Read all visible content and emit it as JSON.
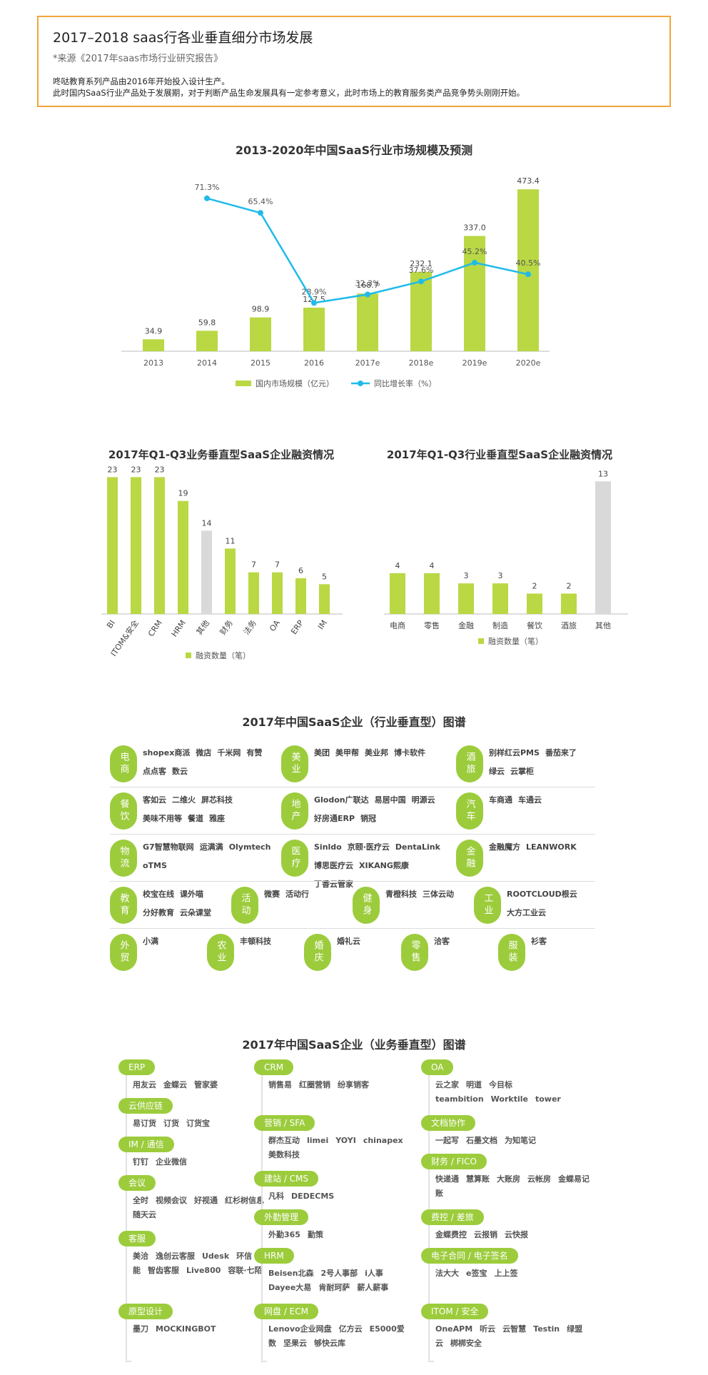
{
  "header": {
    "title": "2017–2018 saas行各业垂直细分市场发展",
    "source": "*来源《2017年saas市场行业研究报告》",
    "desc1": "咚哒教育系列产品由2016年开始投入设计生产。",
    "desc2": "此时国内SaaS行业产品处于发展期，对于判断产品生命发展具有一定参考意义，此时市场上的教育服务类产品竞争势头刚刚开始。"
  },
  "colors": {
    "bar": "#b9d844",
    "line": "#1fbbe9",
    "gray": "#d9d9d9",
    "accent": "#9ccc3c",
    "border": "#f0a63a"
  },
  "chart_data": [
    {
      "type": "bar",
      "title": "2013-2020年中国SaaS行业市场规模及预测",
      "categories": [
        "2013",
        "2014",
        "2015",
        "2016",
        "2017e",
        "2018e",
        "2019e",
        "2020e"
      ],
      "series": [
        {
          "name": "国内市场规模（亿元）",
          "type": "bar",
          "values": [
            34.9,
            59.8,
            98.9,
            127.5,
            168.7,
            232.1,
            337.0,
            473.4
          ]
        },
        {
          "name": "同比增长率（%）",
          "type": "line",
          "values": [
            null,
            71.3,
            65.4,
            28.9,
            32.3,
            37.6,
            45.2,
            40.5
          ]
        }
      ],
      "value_labels": [
        "34.9",
        "59.8",
        "98.9",
        "127.5",
        "168.7",
        "232.1",
        "337.0",
        "473.4"
      ],
      "rate_labels": [
        "",
        "71.3%",
        "65.4%",
        "28.9%",
        "32.3%",
        "37.6%",
        "45.2%",
        "40.5%"
      ],
      "legend": "bottom"
    },
    {
      "type": "bar",
      "title": "2017年Q1-Q3业务垂直型SaaS企业融资情况",
      "categories": [
        "BI",
        "ITOM&安全",
        "CRM",
        "HRM",
        "其他",
        "财务",
        "法务",
        "OA",
        "ERP",
        "IM"
      ],
      "values": [
        23,
        23,
        23,
        19,
        14,
        11,
        7,
        7,
        6,
        5
      ],
      "highlight_index": 4,
      "legend": "融资数量（笔）"
    },
    {
      "type": "bar",
      "title": "2017年Q1-Q3行业垂直型SaaS企业融资情况",
      "categories": [
        "电商",
        "零售",
        "金融",
        "制造",
        "餐饮",
        "酒旅",
        "其他"
      ],
      "values": [
        4,
        4,
        3,
        3,
        2,
        2,
        13
      ],
      "highlight_index": 6,
      "legend": "融资数量（笔）"
    }
  ],
  "industry_map": {
    "title": "2017年中国SaaS企业（行业垂直型）图谱",
    "rows": [
      {
        "cells": [
          {
            "label": "电商",
            "brands": [
              "shopex商派",
              "微店",
              "千米网",
              "有赞",
              "点点客",
              "数云"
            ]
          },
          {
            "label": "美业",
            "brands": [
              "美团",
              "美甲帮",
              "美业邦",
              "博卡软件"
            ]
          },
          {
            "label": "酒旅",
            "brands": [
              "别样红云PMS",
              "番茄来了",
              "绿云",
              "云掌柜"
            ]
          }
        ]
      },
      {
        "cells": [
          {
            "label": "餐饮",
            "brands": [
              "客如云",
              "二维火",
              "屏芯科技",
              "美味不用等",
              "餐道",
              "雅座"
            ]
          },
          {
            "label": "地产",
            "brands": [
              "Glodon广联达",
              "易居中国",
              "明源云",
              "好房通ERP",
              "销冠"
            ]
          },
          {
            "label": "汽车",
            "brands": [
              "车商通",
              "车通云"
            ]
          }
        ]
      },
      {
        "cells": [
          {
            "label": "物流",
            "brands": [
              "G7智慧物联网",
              "运满满",
              "Olymtech",
              "oTMS"
            ]
          },
          {
            "label": "医疗",
            "brands": [
              "Sinldo",
              "京颐·医疗云",
              "DentaLink",
              "博思医疗云",
              "XIKANG熙康",
              "丁香云管家"
            ]
          },
          {
            "label": "金融",
            "brands": [
              "金融魔方",
              "LEANWORK"
            ]
          }
        ]
      },
      {
        "cells": [
          {
            "label": "教育",
            "brands": [
              "校宝在线",
              "课外喵",
              "分好教育",
              "云朵课堂"
            ]
          },
          {
            "label": "活动",
            "brands": [
              "微赛",
              "活动行"
            ]
          },
          {
            "label": "健身",
            "brands": [
              "青橙科技",
              "三体云动"
            ]
          },
          {
            "label": "工业",
            "brands": [
              "ROOTCLOUD根云",
              "大方工业云"
            ]
          }
        ]
      },
      {
        "cells": [
          {
            "label": "外贸",
            "brands": [
              "小满"
            ]
          },
          {
            "label": "农业",
            "brands": [
              "丰顿科技"
            ]
          },
          {
            "label": "婚庆",
            "brands": [
              "婚礼云"
            ]
          },
          {
            "label": "零售",
            "brands": [
              "洽客"
            ]
          },
          {
            "label": "服装",
            "brands": [
              "衫客"
            ]
          }
        ]
      }
    ]
  },
  "business_map": {
    "title": "2017年中国SaaS企业（业务垂直型）图谱",
    "left": [
      {
        "label": "ERP",
        "logos": [
          "用友云",
          "金蝶云",
          "管家婆"
        ]
      },
      {
        "label": "云供应链",
        "logos": [
          "易订货",
          "订货",
          "订货宝"
        ]
      },
      {
        "label": "IM / 通信",
        "logos": [
          "钉钉",
          "企业微信"
        ]
      },
      {
        "label": "会议",
        "logos": [
          "全时",
          "视频会议",
          "好视通",
          "红杉树信息",
          "随天云"
        ]
      },
      {
        "label": "客服",
        "logos": [
          "美洽",
          "逸创云客服",
          "Udesk",
          "环信",
          "小能",
          "智齿客服",
          "Live800",
          "容联·七陌"
        ]
      },
      {
        "label": "原型设计",
        "logos": [
          "墨刀",
          "MOCKINGBOT"
        ]
      }
    ],
    "middle": [
      {
        "label": "CRM",
        "logos": [
          "销售易",
          "红圈营销",
          "纷享销客"
        ]
      },
      {
        "label": "营销 / SFA",
        "logos": [
          "群杰互动",
          "limei",
          "YOYI",
          "chinapex",
          "美数科技"
        ]
      },
      {
        "label": "建站 / CMS",
        "logos": [
          "凡科",
          "DEDECMS"
        ]
      },
      {
        "label": "外勤管理",
        "logos": [
          "外勤365",
          "勤策"
        ]
      },
      {
        "label": "HRM",
        "logos": [
          "Beisen北森",
          "2号人事部",
          "i人事",
          "Dayee大易",
          "肯耐珂萨",
          "薪人薪事"
        ]
      },
      {
        "label": "网盘 / ECM",
        "logos": [
          "Lenovo企业网盘",
          "亿方云",
          "E5000爱数",
          "坚果云",
          "够快云库"
        ]
      }
    ],
    "right": [
      {
        "label": "OA",
        "logos": [
          "云之家",
          "明道",
          "今目标",
          "teambition",
          "Worktile",
          "tower"
        ]
      },
      {
        "label": "文档协作",
        "logos": [
          "一起写",
          "石墨文档",
          "为知笔记"
        ]
      },
      {
        "label": "财务 / FICO",
        "logos": [
          "快递通",
          "慧算账",
          "大账房",
          "云帐房",
          "金蝶易记账"
        ]
      },
      {
        "label": "费控 / 差旅",
        "logos": [
          "金蝶费控",
          "云报销",
          "云快报"
        ]
      },
      {
        "label": "电子合同 / 电子签名",
        "logos": [
          "法大大",
          "e签宝",
          "上上签"
        ]
      },
      {
        "label": "ITOM / 安全",
        "logos": [
          "OneAPM",
          "听云",
          "云智慧",
          "Testin",
          "绿盟云",
          "梆梆安全"
        ]
      }
    ]
  }
}
